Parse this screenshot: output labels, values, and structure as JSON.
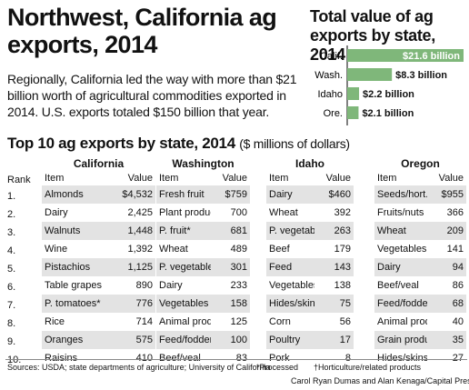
{
  "headline": "Northwest, California ag exports, 2014",
  "subtext": "Regionally, California led the way with more than $21 billion worth of agricultural commodities exported in 2014. U.S. exports totaled $150 billion that year.",
  "colors": {
    "bar": "#7fb77a",
    "shade": "#e3e3e3",
    "axis": "#000000"
  },
  "chart_data": [
    {
      "type": "bar",
      "orientation": "horizontal",
      "title": "Total value of ag exports by state, 2014",
      "categories": [
        "Calif.",
        "Wash.",
        "Idaho",
        "Ore."
      ],
      "values": [
        21.6,
        8.3,
        2.2,
        2.1
      ],
      "labels": [
        "$21.6 billion",
        "$8.3 billion",
        "$2.2 billion",
        "$2.1 billion"
      ],
      "xlim": [
        0,
        21.6
      ]
    },
    {
      "type": "table",
      "title": "Top 10 ag exports by state, 2014",
      "unit": "($ millions of dollars)",
      "rank_header": "Rank",
      "item_header": "Item",
      "value_header": "Value",
      "ranks": [
        "1.",
        "2.",
        "3.",
        "4.",
        "5.",
        "6.",
        "7.",
        "8.",
        "9.",
        "10."
      ],
      "states": [
        {
          "name": "California",
          "rows": [
            {
              "item": "Almonds",
              "value": "$4,532"
            },
            {
              "item": "Dairy",
              "value": "2,425"
            },
            {
              "item": "Walnuts",
              "value": "1,448"
            },
            {
              "item": "Wine",
              "value": "1,392"
            },
            {
              "item": "Pistachios",
              "value": "1,125"
            },
            {
              "item": "Table grapes",
              "value": "890"
            },
            {
              "item": "P. tomatoes*",
              "value": "776"
            },
            {
              "item": "Rice",
              "value": "714"
            },
            {
              "item": "Oranges",
              "value": "575"
            },
            {
              "item": "Raisins",
              "value": "410"
            }
          ]
        },
        {
          "name": "Washington",
          "rows": [
            {
              "item": "Fresh fruit",
              "value": "$759"
            },
            {
              "item": "Plant products",
              "value": "700"
            },
            {
              "item": "P. fruit*",
              "value": "681"
            },
            {
              "item": "Wheat",
              "value": "489"
            },
            {
              "item": "P. vegetables*",
              "value": "301"
            },
            {
              "item": "Dairy",
              "value": "233"
            },
            {
              "item": "Vegetables",
              "value": "158"
            },
            {
              "item": "Animal products",
              "value": "125"
            },
            {
              "item": "Feed/fodder",
              "value": "100"
            },
            {
              "item": "Beef/veal",
              "value": "83"
            }
          ]
        },
        {
          "name": "Idaho",
          "rows": [
            {
              "item": "Dairy",
              "value": "$460"
            },
            {
              "item": "Wheat",
              "value": "392"
            },
            {
              "item": "P. vegetables*",
              "value": "263"
            },
            {
              "item": "Beef",
              "value": "179"
            },
            {
              "item": "Feed",
              "value": "143"
            },
            {
              "item": "Vegetables",
              "value": "138"
            },
            {
              "item": "Hides/skins",
              "value": "75"
            },
            {
              "item": "Corn",
              "value": "56"
            },
            {
              "item": "Poultry",
              "value": "17"
            },
            {
              "item": "Pork",
              "value": "8"
            }
          ]
        },
        {
          "name": "Oregon",
          "rows": [
            {
              "item": "Seeds/hort.†",
              "value": "$955"
            },
            {
              "item": "Fruits/nuts",
              "value": "366"
            },
            {
              "item": "Wheat",
              "value": "209"
            },
            {
              "item": "Vegetables",
              "value": "141"
            },
            {
              "item": "Dairy",
              "value": "94"
            },
            {
              "item": "Beef/veal",
              "value": "86"
            },
            {
              "item": "Feed/fodders",
              "value": "68"
            },
            {
              "item": "Animal products",
              "value": "40"
            },
            {
              "item": "Grain products",
              "value": "35"
            },
            {
              "item": "Hides/skins",
              "value": "27"
            }
          ]
        }
      ]
    }
  ],
  "footer": {
    "sources": "Sources: USDA; state departments of agriculture; University of California",
    "note_processed": "*Processed",
    "note_hort": "†Horticulture/related products",
    "credit": "Carol Ryan Dumas and Alan Kenaga/Capital Press"
  }
}
